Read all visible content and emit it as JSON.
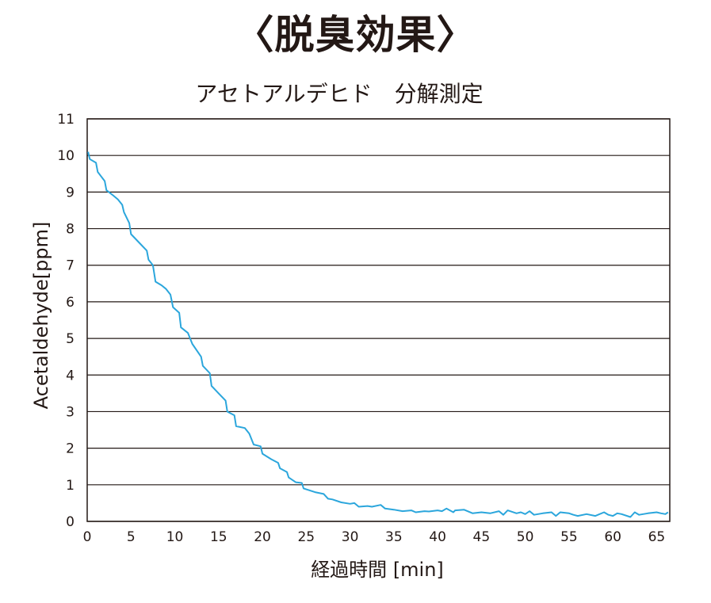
{
  "heading": "〈脱臭効果〉",
  "chart_data": {
    "type": "line",
    "title": "アセトアルデヒド　分解測定",
    "xlabel": "経過時間 [min]",
    "ylabel": "Acetaldehyde[ppm]",
    "xlim": [
      0,
      66.5
    ],
    "ylim": [
      0,
      11
    ],
    "x_ticks": [
      0,
      5,
      10,
      15,
      20,
      25,
      30,
      35,
      40,
      45,
      50,
      55,
      60,
      65
    ],
    "y_ticks": [
      0,
      1,
      2,
      3,
      4,
      5,
      6,
      7,
      8,
      9,
      10,
      11
    ],
    "grid": "horizontal",
    "line_color": "#2ba6dc",
    "series": [
      {
        "x": [
          0.1,
          0.3,
          1.0,
          1.2,
          2.0,
          2.2,
          3.0,
          3.5,
          4.0,
          4.2,
          4.8,
          5.0,
          6.0,
          6.8,
          7.0,
          7.5,
          7.8,
          8.5,
          9.0,
          9.5,
          9.8,
          10.5,
          10.7,
          11.5,
          12.0,
          13.0,
          13.2,
          14.0,
          14.2,
          15.0,
          15.8,
          16.0,
          16.8,
          17.0,
          18.0,
          18.5,
          19.0,
          19.8,
          20.0,
          21.0,
          21.8,
          22.0,
          22.8,
          23.0,
          23.8,
          24.5,
          24.7,
          26.0,
          27.0,
          27.5,
          28.0,
          29.0,
          30.0,
          30.5,
          31.0,
          32.0,
          32.5,
          33.5,
          34.0,
          35.0,
          36.0,
          37.0,
          37.5,
          38.5,
          39.0,
          40.0,
          40.5,
          41.0,
          41.8,
          42.0,
          43.0,
          44.0,
          45.0,
          46.0,
          47.0,
          47.5,
          48.0,
          49.0,
          49.5,
          50.0,
          50.5,
          51.0,
          52.0,
          53.0,
          53.5,
          54.0,
          55.0,
          55.5,
          56.0,
          57.0,
          58.0,
          59.0,
          59.5,
          60.0,
          60.5,
          61.0,
          62.0,
          62.5,
          63.0,
          64.0,
          65.0,
          65.5,
          66.0,
          66.3
        ],
        "y": [
          10.1,
          9.9,
          9.8,
          9.55,
          9.3,
          9.05,
          8.9,
          8.8,
          8.65,
          8.45,
          8.15,
          7.85,
          7.6,
          7.4,
          7.15,
          7.0,
          6.55,
          6.45,
          6.35,
          6.2,
          5.85,
          5.7,
          5.3,
          5.15,
          4.85,
          4.5,
          4.25,
          4.05,
          3.7,
          3.5,
          3.3,
          3.0,
          2.9,
          2.6,
          2.55,
          2.4,
          2.1,
          2.05,
          1.85,
          1.7,
          1.6,
          1.45,
          1.35,
          1.2,
          1.07,
          1.05,
          0.9,
          0.8,
          0.75,
          0.62,
          0.6,
          0.52,
          0.48,
          0.5,
          0.4,
          0.42,
          0.4,
          0.45,
          0.35,
          0.32,
          0.28,
          0.3,
          0.25,
          0.28,
          0.27,
          0.3,
          0.28,
          0.35,
          0.25,
          0.3,
          0.32,
          0.22,
          0.25,
          0.22,
          0.28,
          0.18,
          0.3,
          0.22,
          0.25,
          0.2,
          0.28,
          0.18,
          0.22,
          0.25,
          0.15,
          0.25,
          0.22,
          0.18,
          0.15,
          0.2,
          0.15,
          0.25,
          0.18,
          0.15,
          0.22,
          0.2,
          0.12,
          0.25,
          0.18,
          0.22,
          0.25,
          0.22,
          0.2,
          0.25
        ]
      }
    ]
  }
}
